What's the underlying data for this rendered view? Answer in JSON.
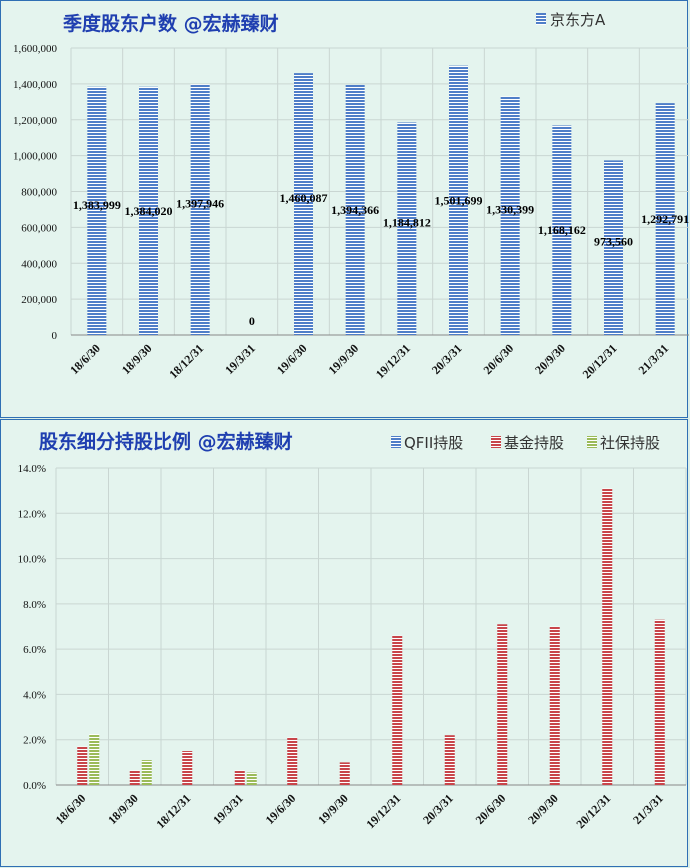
{
  "chart_data": [
    {
      "type": "bar",
      "title": "季度股东户数 @宏赫臻财",
      "categories": [
        "18/6/30",
        "18/9/30",
        "18/12/31",
        "19/3/31",
        "19/6/30",
        "19/9/30",
        "19/12/31",
        "20/3/31",
        "20/6/30",
        "20/9/30",
        "20/12/31",
        "21/3/31"
      ],
      "series": [
        {
          "name": "京东方A",
          "values": [
            1383999,
            1384020,
            1397946,
            0,
            1460087,
            1394366,
            1184812,
            1501699,
            1330399,
            1168162,
            973560,
            1292791
          ]
        }
      ],
      "data_labels": [
        "1,383,999",
        "1,384,020",
        "1,397,946",
        "0",
        "1,460,087",
        "1,394,366",
        "1,184,812",
        "1,501,699",
        "1,330,399",
        "1,168,162",
        "973,560",
        "1,292,791"
      ],
      "ylim": [
        0,
        1600000
      ],
      "yticks": [
        "0",
        "200,000",
        "400,000",
        "600,000",
        "800,000",
        "1,000,000",
        "1,200,000",
        "1,400,000",
        "1,600,000"
      ],
      "xlabel": "",
      "ylabel": "",
      "grid": true,
      "legend": "top-right",
      "colors": [
        "#4f7ec8"
      ]
    },
    {
      "type": "bar",
      "title": "股东细分持股比例 @宏赫臻财",
      "categories": [
        "18/6/30",
        "18/9/30",
        "18/12/31",
        "19/3/31",
        "19/6/30",
        "19/9/30",
        "19/12/31",
        "20/3/31",
        "20/6/30",
        "20/9/30",
        "20/12/31",
        "21/3/31"
      ],
      "series": [
        {
          "name": "QFII持股",
          "values": [
            0,
            0,
            0,
            0,
            0,
            0,
            0,
            0,
            0,
            0,
            0,
            0
          ]
        },
        {
          "name": "基金持股",
          "values": [
            1.7,
            0.65,
            1.5,
            0.65,
            2.1,
            1.0,
            6.6,
            2.2,
            7.1,
            7.0,
            13.1,
            7.3
          ]
        },
        {
          "name": "社保持股",
          "values": [
            2.25,
            1.1,
            0,
            0.55,
            0,
            0,
            0,
            0,
            0,
            0,
            0,
            0
          ]
        }
      ],
      "ylim": [
        0,
        14
      ],
      "yticks": [
        "0.0%",
        "2.0%",
        "4.0%",
        "6.0%",
        "8.0%",
        "10.0%",
        "12.0%",
        "14.0%"
      ],
      "xlabel": "",
      "ylabel": "",
      "grid": true,
      "legend": "top-right",
      "colors": [
        "#4f7ec8",
        "#c8454a",
        "#9bbb59"
      ]
    }
  ]
}
